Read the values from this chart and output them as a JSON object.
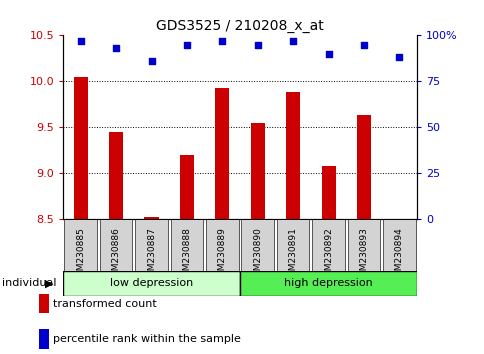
{
  "title": "GDS3525 / 210208_x_at",
  "samples": [
    "GSM230885",
    "GSM230886",
    "GSM230887",
    "GSM230888",
    "GSM230889",
    "GSM230890",
    "GSM230891",
    "GSM230892",
    "GSM230893",
    "GSM230894"
  ],
  "bar_values": [
    10.05,
    9.45,
    8.53,
    9.2,
    9.93,
    9.55,
    9.88,
    9.08,
    9.63,
    8.5
  ],
  "percentile_values": [
    97,
    93,
    86,
    95,
    97,
    95,
    97,
    90,
    95,
    88
  ],
  "bar_color": "#cc0000",
  "dot_color": "#0000cc",
  "ylim_left": [
    8.5,
    10.5
  ],
  "ylim_right": [
    0,
    100
  ],
  "yticks_left": [
    8.5,
    9.0,
    9.5,
    10.0,
    10.5
  ],
  "yticks_right": [
    0,
    25,
    50,
    75,
    100
  ],
  "ytick_labels_right": [
    "0",
    "25",
    "50",
    "75",
    "100%"
  ],
  "group1_label": "low depression",
  "group2_label": "high depression",
  "group1_color": "#ccffcc",
  "group2_color": "#55ee55",
  "individual_label": "individual",
  "legend_bar_label": "transformed count",
  "legend_dot_label": "percentile rank within the sample",
  "bar_bottom": 8.5,
  "n_group1": 5,
  "n_group2": 5,
  "sample_box_color": "#d3d3d3",
  "dot_size": 20
}
